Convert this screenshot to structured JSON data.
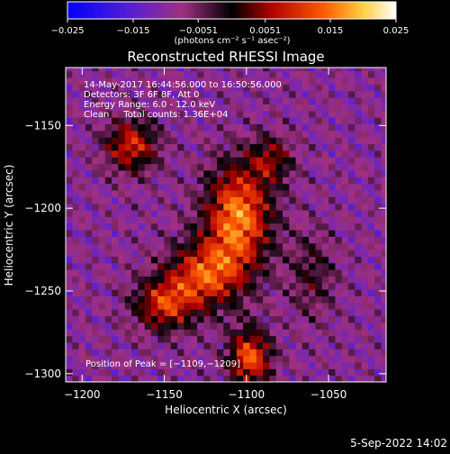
{
  "colorbar": {
    "tick_labels": [
      "−0.025",
      "−0.015",
      "−0.0051",
      "0.0051",
      "0.015",
      "0.025"
    ],
    "tick_values": [
      -0.025,
      -0.015,
      -0.0051,
      0.0051,
      0.015,
      0.025
    ],
    "range": [
      -0.025,
      0.025
    ],
    "units_label": "(photons cm⁻² s⁻¹ asec⁻²)"
  },
  "chart_data": {
    "type": "heatmap",
    "title": "Reconstructed RHESSI Image",
    "xlabel": "Heliocentric X (arcsec)",
    "ylabel": "Heliocentric Y (arcsec)",
    "xlim": [
      -1210,
      -1015
    ],
    "ylim": [
      -1305,
      -1115
    ],
    "x_ticks": [
      -1200,
      -1150,
      -1100,
      -1050
    ],
    "x_tick_labels": [
      "−1200",
      "−1150",
      "−1100",
      "−1050"
    ],
    "y_ticks": [
      -1150,
      -1200,
      -1250,
      -1300
    ],
    "y_tick_labels": [
      "−1150",
      "−1200",
      "−1250",
      "−1300"
    ],
    "peak_position": [
      -1109,
      -1209
    ],
    "colormap": [
      "#0000ff",
      "#7a2cc0",
      "#b0306e",
      "#000000",
      "#c01010",
      "#ff6a00",
      "#ffe060",
      "#ffffff"
    ],
    "sources": [
      {
        "x": -1170,
        "y": -1162,
        "amp": 0.018,
        "sx": 11,
        "sy": 11
      },
      {
        "x": -1105,
        "y": -1205,
        "amp": 0.025,
        "sx": 14,
        "sy": 22
      },
      {
        "x": -1125,
        "y": -1240,
        "amp": 0.02,
        "sx": 16,
        "sy": 14
      },
      {
        "x": -1150,
        "y": -1258,
        "amp": 0.018,
        "sx": 13,
        "sy": 11
      },
      {
        "x": -1098,
        "y": -1290,
        "amp": 0.022,
        "sx": 9,
        "sy": 12
      },
      {
        "x": -1085,
        "y": -1170,
        "amp": 0.012,
        "sx": 9,
        "sy": 10
      },
      {
        "x": -1060,
        "y": -1240,
        "amp": 0.008,
        "sx": 10,
        "sy": 18
      }
    ],
    "annotations": [
      "14-May-2017 16:44:56.000 to 16:50:56.000",
      "Detectors: 3F 6F 8F, Att 0",
      "Energy Range: 6.0 - 12.0 keV",
      "Clean     Total counts: 1.36E+04"
    ],
    "peak_label": "Position of Peak = [−1109,−1209]"
  },
  "footer": {
    "date": "5-Sep-2022 14:02"
  }
}
